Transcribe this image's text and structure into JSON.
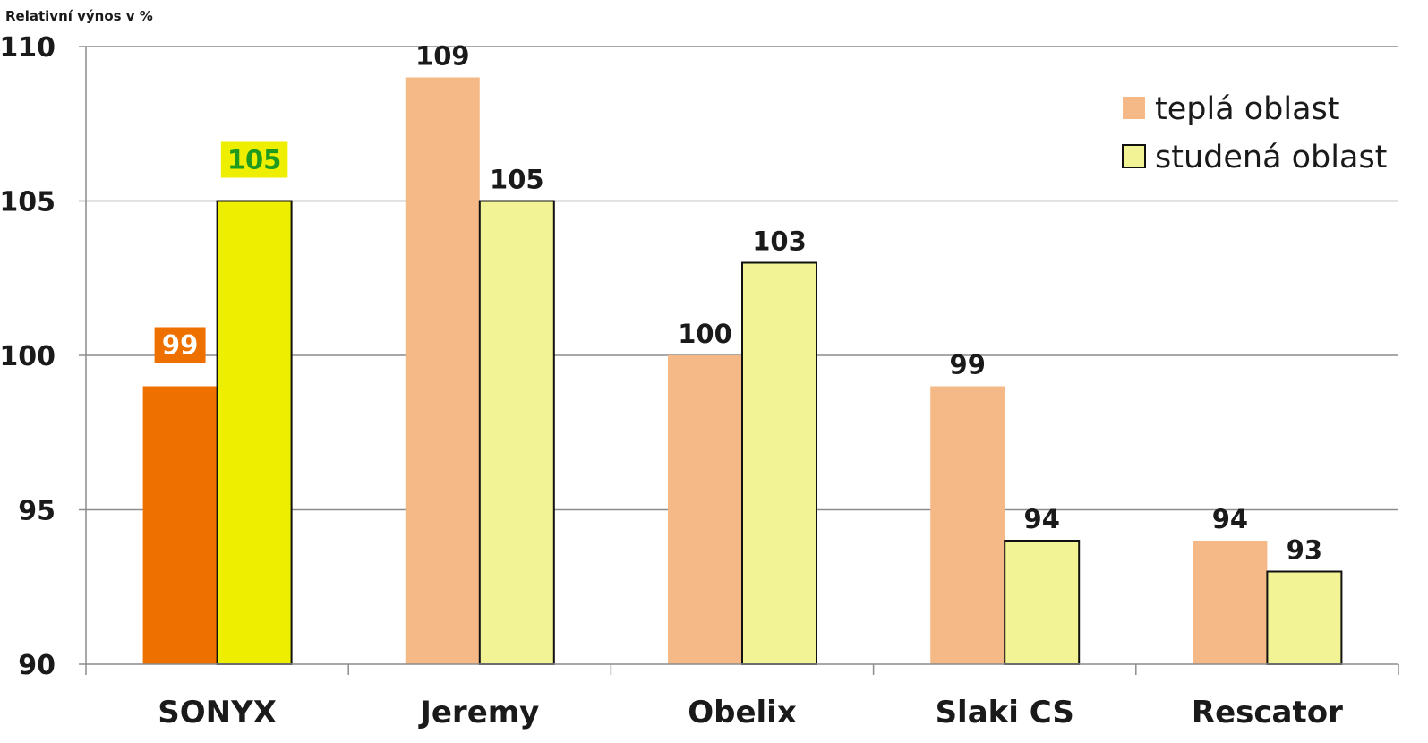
{
  "chart_data": {
    "type": "bar",
    "title": "",
    "ylabel": "Relativní výnos v %",
    "xlabel": "",
    "ylim": [
      90,
      110
    ],
    "yticks": [
      90,
      95,
      100,
      105,
      110
    ],
    "grid": true,
    "legend_position": "top-right",
    "categories": [
      "SONYX",
      "Jeremy",
      "Obelix",
      "Slaki CS",
      "Rescator"
    ],
    "series": [
      {
        "name": "teplá oblast",
        "color": "#F5B987",
        "highlight_color": "#EE7100",
        "values": [
          99,
          109,
          100,
          99,
          94
        ]
      },
      {
        "name": "studená oblast",
        "color": "#F1F394",
        "highlight_color": "#EEEE00",
        "values": [
          105,
          105,
          103,
          94,
          93
        ]
      }
    ],
    "highlighted_category": "SONYX",
    "highlight_label_colors": {
      "teplá oblast": {
        "background": "#EE7100",
        "text": "#FFFFFF"
      },
      "studená oblast": {
        "background": "#EEEE00",
        "text": "#1E9B1E"
      }
    }
  }
}
